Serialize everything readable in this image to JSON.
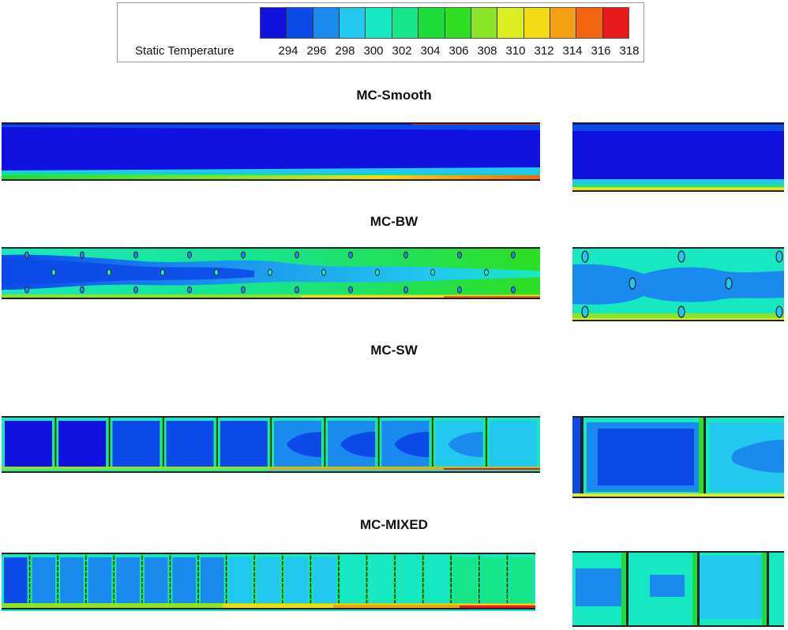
{
  "legend": {
    "title": "Static Temperature",
    "ticks": [
      "294",
      "296",
      "298",
      "300",
      "302",
      "304",
      "306",
      "308",
      "310",
      "312",
      "314",
      "316",
      "318"
    ],
    "colors": [
      "#1212e0",
      "#0c4ae8",
      "#1a8aee",
      "#22c8ee",
      "#18e8c2",
      "#18e48a",
      "#1cdc3c",
      "#2ede22",
      "#8ce42a",
      "#dcee22",
      "#f2da14",
      "#f6a016",
      "#f26412",
      "#e81a1a"
    ]
  },
  "cases": [
    {
      "title": "MC-Smooth"
    },
    {
      "title": "MC-BW"
    },
    {
      "title": "MC-SW"
    },
    {
      "title": "MC-MIXED"
    }
  ]
}
